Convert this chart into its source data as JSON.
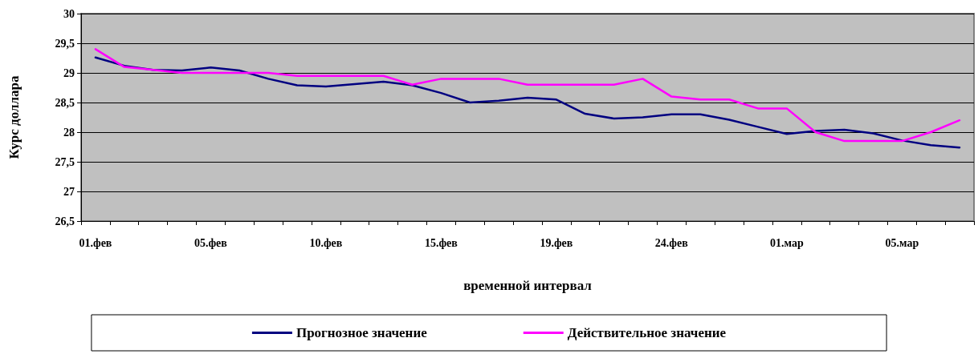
{
  "chart_data": {
    "type": "line",
    "xlabel": "временной интервал",
    "ylabel": "Курс доллара",
    "categories": [
      "01.фев",
      null,
      null,
      null,
      "05.фев",
      null,
      null,
      null,
      "10.фев",
      null,
      null,
      null,
      "15.фев",
      null,
      null,
      null,
      "19.фев",
      null,
      null,
      null,
      "24.фев",
      null,
      null,
      null,
      "01.мар",
      null,
      null,
      null,
      "05.мар",
      null,
      null
    ],
    "series": [
      {
        "name": "Прогнозное значение",
        "color": "#000080",
        "values": [
          29.26,
          29.12,
          29.05,
          29.04,
          29.09,
          29.04,
          28.9,
          28.79,
          28.77,
          28.81,
          28.85,
          28.79,
          28.66,
          28.5,
          28.53,
          28.58,
          28.55,
          28.31,
          28.23,
          28.25,
          28.3,
          28.3,
          28.21,
          28.09,
          27.97,
          28.02,
          28.04,
          27.98,
          27.86,
          27.78,
          27.74
        ]
      },
      {
        "name": "Действительное значение",
        "color": "#ff00ff",
        "values": [
          29.4,
          29.1,
          29.05,
          29.0,
          29.0,
          29.0,
          29.0,
          28.95,
          28.95,
          28.95,
          28.95,
          28.8,
          28.9,
          28.9,
          28.9,
          28.8,
          28.8,
          28.8,
          28.8,
          28.9,
          28.6,
          28.55,
          28.55,
          28.4,
          28.4,
          28.0,
          27.85,
          27.85,
          27.85,
          28.0,
          28.2
        ]
      }
    ],
    "ylim": [
      26.5,
      30
    ],
    "yticks": [
      {
        "value": 26.5,
        "label": "26,5"
      },
      27,
      {
        "value": 27.5,
        "label": "27,5"
      },
      28,
      {
        "value": 28.5,
        "label": "28,5"
      },
      29,
      {
        "value": 29.5,
        "label": "29,5"
      },
      30
    ],
    "grid": "y",
    "legend": "bottom",
    "marker": "none",
    "line_style": "solid"
  }
}
